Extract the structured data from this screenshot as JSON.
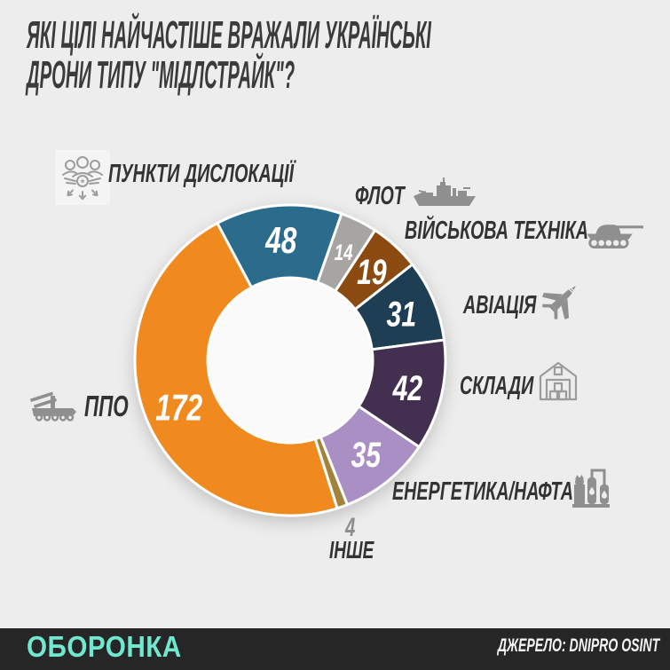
{
  "title": {
    "line1": "ЯКІ ЦІЛІ НАЙЧАСТІШЕ ВРАЖАЛИ УКРАЇНСЬКІ",
    "line2": "ДРОНИ ТИПУ \"МІДЛСТРАЙК\"?"
  },
  "chart_data": {
    "type": "pie",
    "subtype": "donut",
    "title": "ЯКІ ЦІЛІ НАЙЧАСТІШЕ ВРАЖАЛИ УКРАЇНСЬКІ ДРОНИ ТИПУ \"МІДЛСТРАЙК\"?",
    "total": 365,
    "start_angle_deg": -28,
    "clockwise": true,
    "legend_position": "around",
    "categories": [
      "ПУНКТИ ДИСЛОКАЦІЇ",
      "ФЛОТ",
      "ВІЙСЬКОВА ТЕХНІКА",
      "АВІАЦІЯ",
      "СКЛАДИ",
      "ЕНЕРГЕТИКА/НАФТА",
      "ІНШЕ",
      "ППО"
    ],
    "values": [
      48,
      14,
      19,
      31,
      42,
      35,
      4,
      172
    ],
    "segments": [
      {
        "label": "ПУНКТИ ДИСЛОКАЦІЇ",
        "value": 48,
        "color": "#2b6b8c",
        "icon": "garrison-icon"
      },
      {
        "label": "ФЛОТ",
        "value": 14,
        "color": "#a7a5a2",
        "icon": "warship-icon"
      },
      {
        "label": "ВІЙСЬКОВА ТЕХНІКА",
        "value": 19,
        "color": "#8b4a10",
        "icon": "tank-icon"
      },
      {
        "label": "АВІАЦІЯ",
        "value": 31,
        "color": "#1d3e53",
        "icon": "fighter-jet-icon"
      },
      {
        "label": "СКЛАДИ",
        "value": 42,
        "color": "#433050",
        "icon": "warehouse-icon"
      },
      {
        "label": "ЕНЕРГЕТИКА/НАФТА",
        "value": 35,
        "color": "#a98fc3",
        "icon": "refinery-icon"
      },
      {
        "label": "ІНШЕ",
        "value": 4,
        "color": "#a3823c",
        "label_outside": true
      },
      {
        "label": "ППО",
        "value": 172,
        "color": "#f0891e",
        "icon": "air-defense-icon"
      }
    ],
    "value_label_color": "#ffffff",
    "hole_color": "#fafafa"
  },
  "footer": {
    "brand": "ОБОРОНКА",
    "source": "ДЖЕРЕЛО: DNIPRO OSINT"
  }
}
